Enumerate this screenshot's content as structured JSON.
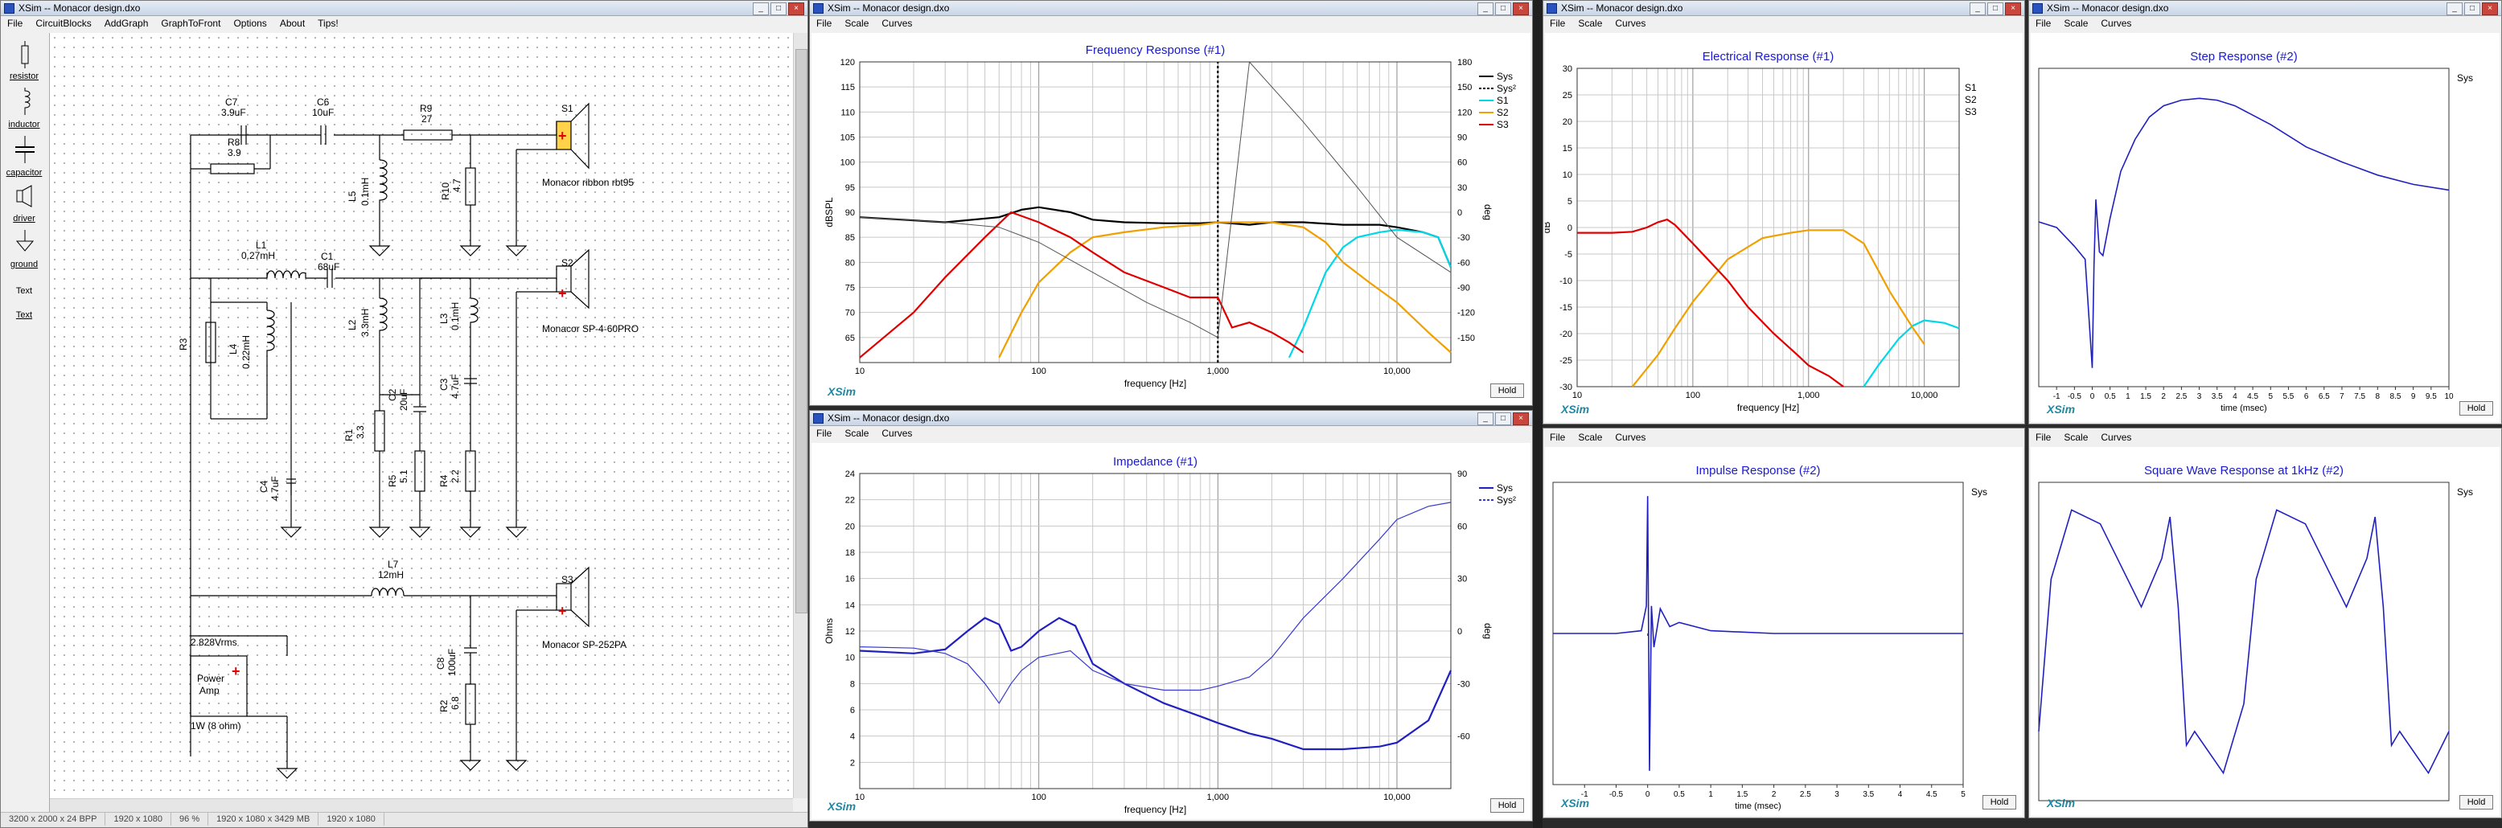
{
  "schematic": {
    "title": "XSim -- Monacor design.dxo",
    "menu": [
      "File",
      "CircuitBlocks",
      "AddGraph",
      "GraphToFront",
      "Options",
      "About",
      "Tips!"
    ],
    "tools": [
      {
        "label": "resistor",
        "icon": "resistor-icon"
      },
      {
        "label": "inductor",
        "icon": "inductor-icon"
      },
      {
        "label": "capacitor",
        "icon": "capacitor-icon"
      },
      {
        "label": "driver",
        "icon": "driver-icon"
      },
      {
        "label": "ground",
        "icon": "ground-icon"
      },
      {
        "label": "Text",
        "icon": ""
      },
      {
        "label": "Text",
        "icon": ""
      }
    ],
    "labels": {
      "C7": "C7",
      "C7v": "3.9uF",
      "R8": "R8",
      "R8v": "3.9",
      "C6": "C6",
      "C6v": "10uF",
      "R9": "R9",
      "R9v": "27",
      "L5": "L5",
      "L5v": "0.1mH",
      "R10": "R10",
      "R10v": "4.7",
      "S1": "S1",
      "S1name": "Monacor ribbon rbt95",
      "L1": "L1",
      "L1v": "0.27mH",
      "C1": "C1",
      "C1v": "68uF",
      "S2": "S2",
      "S2name": "Monacor SP-4-60PRO",
      "R3": "R3",
      "L4": "L4",
      "L4v": "0.22mH",
      "L2": "L2",
      "L2v": "3.3mH",
      "C2": "C2",
      "C2v": "20uF",
      "C3": "C3",
      "C3v": "4.7uF",
      "L3": "L3",
      "L3v": "0.1mH",
      "R1": "R1",
      "R1v": "3.3",
      "R5": "R5",
      "R5v": "5.1",
      "R4": "R4",
      "R4v": "2.2",
      "C4": "C4",
      "C4v": "4.7uF",
      "L7": "L7",
      "L7v": "12mH",
      "S3": "S3",
      "S3name": "Monacor SP-252PA",
      "C8": "C8",
      "C8v": "100uF",
      "R2": "R2",
      "R2v": "6.8",
      "amp_v": "2.828Vrms",
      "amp1": "Power",
      "amp2": "Amp",
      "amp_note": "1W (8 ohm)"
    },
    "status": [
      "3200 x 2000 x 24 BPP",
      "1920 x 1080",
      "96 %",
      "1920 x 1080 x 3429 MB",
      "1920 x 1080"
    ]
  },
  "freq": {
    "title": "XSim -- Monacor design.dxo",
    "menu": [
      "File",
      "Scale",
      "Curves"
    ],
    "chart_title": "Frequency Response (#1)",
    "xlabel": "frequency [Hz]",
    "ylabel": "dBSPL",
    "y2label": "deg",
    "legend": [
      "Sys",
      "Sys²",
      "S1",
      "S2",
      "S3"
    ],
    "hold": "Hold",
    "logo": "XSim"
  },
  "imp": {
    "title": "XSim -- Monacor design.dxo",
    "menu": [
      "File",
      "Scale",
      "Curves"
    ],
    "chart_title": "Impedance (#1)",
    "xlabel": "frequency [Hz]",
    "ylabel": "Ohms",
    "y2label": "deg",
    "legend": [
      "Sys",
      "Sys²"
    ],
    "hold": "Hold",
    "logo": "XSim"
  },
  "elec": {
    "title": "XSim -- Monacor design.dxo",
    "menu": [
      "File",
      "Scale",
      "Curves"
    ],
    "chart_title": "Electrical Response (#1)",
    "xlabel": "frequency [Hz]",
    "ylabel": "dB",
    "legend": [
      "S1",
      "S2",
      "S3"
    ],
    "logo": "XSim"
  },
  "step": {
    "title": "XSim -- Monacor design.dxo",
    "menu": [
      "File",
      "Scale",
      "Curves"
    ],
    "chart_title": "Step Response (#2)",
    "xlabel": "time (msec)",
    "legend": [
      "Sys"
    ],
    "hold": "Hold",
    "logo": "XSim"
  },
  "impulse": {
    "menu": [
      "File",
      "Scale",
      "Curves"
    ],
    "chart_title": "Impulse Response (#2)",
    "xlabel": "time (msec)",
    "legend": [
      "Sys"
    ],
    "hold": "Hold",
    "logo": "XSim"
  },
  "square": {
    "menu": [
      "File",
      "Scale",
      "Curves"
    ],
    "chart_title": "Square Wave Response at 1kHz (#2)",
    "legend": [
      "Sys"
    ],
    "hold": "Hold",
    "logo": "XSim"
  },
  "chart_data": [
    {
      "type": "line",
      "title": "Frequency Response (#1)",
      "xlabel": "frequency [Hz]",
      "ylabel": "dBSPL",
      "xscale": "log",
      "xlim": [
        10,
        20000
      ],
      "ylim": [
        60,
        120
      ],
      "y2lim": [
        -180,
        180
      ],
      "x_ticks": [
        "10",
        "100",
        "1,000",
        "10,000"
      ],
      "y_ticks": [
        65,
        70,
        75,
        80,
        85,
        90,
        95,
        100,
        105,
        110,
        115,
        120
      ],
      "y2_ticks": [
        180,
        150,
        120,
        90,
        60,
        30,
        0,
        -30,
        -60,
        -90,
        -120,
        -150
      ],
      "series": [
        {
          "name": "Sys",
          "color": "#000000",
          "x": [
            10,
            30,
            60,
            80,
            100,
            150,
            200,
            300,
            500,
            800,
            1000,
            1500,
            2000,
            3000,
            5000,
            8000,
            10000,
            14000,
            17000,
            20000
          ],
          "y": [
            89,
            88,
            89,
            90.5,
            91,
            90,
            88.5,
            88,
            87.8,
            87.8,
            88,
            87.5,
            88,
            88,
            87.5,
            87.5,
            87,
            86,
            85,
            79
          ]
        },
        {
          "name": "Sys²",
          "color": "#000000",
          "dash": true,
          "x": [
            1000,
            1000
          ],
          "y": [
            60,
            120
          ]
        },
        {
          "name": "S1",
          "color": "#00d8e8",
          "x": [
            2500,
            3000,
            4000,
            5000,
            6000,
            8000,
            10000,
            14000,
            17000,
            20000
          ],
          "y": [
            61,
            67,
            78,
            83,
            85,
            86,
            86.5,
            86,
            85,
            79
          ]
        },
        {
          "name": "S2",
          "color": "#f0a000",
          "x": [
            60,
            80,
            100,
            150,
            200,
            300,
            500,
            800,
            1000,
            1500,
            2000,
            3000,
            4000,
            5000,
            7000,
            10000,
            15000,
            20000
          ],
          "y": [
            61,
            70,
            76,
            82,
            85,
            86,
            87,
            87.5,
            88,
            88,
            88,
            87,
            84,
            80,
            76,
            72,
            66,
            62
          ]
        },
        {
          "name": "S3",
          "color": "#e00000",
          "x": [
            10,
            20,
            30,
            50,
            70,
            100,
            150,
            200,
            300,
            500,
            700,
            1000,
            1200,
            1500,
            2000,
            2500,
            3000
          ],
          "y": [
            61,
            70,
            77,
            85,
            90,
            88,
            85,
            82,
            78,
            75,
            73,
            73,
            67,
            68,
            66,
            64,
            62
          ]
        },
        {
          "name": "phase",
          "color": "#555555",
          "x": [
            10,
            30,
            60,
            100,
            200,
            400,
            700,
            1000,
            1500,
            3000,
            6000,
            10000,
            20000
          ],
          "y": [
            89,
            88,
            87,
            84,
            78,
            72,
            68,
            65,
            120,
            108,
            95,
            85,
            78
          ]
        }
      ]
    },
    {
      "type": "line",
      "title": "Impedance (#1)",
      "xlabel": "frequency [Hz]",
      "ylabel": "Ohms",
      "xscale": "log",
      "xlim": [
        10,
        20000
      ],
      "ylim": [
        0,
        24
      ],
      "y2lim": [
        -90,
        90
      ],
      "x_ticks": [
        "10",
        "100",
        "1,000",
        "10,000"
      ],
      "y_ticks": [
        2,
        4,
        6,
        8,
        10,
        12,
        14,
        16,
        18,
        20,
        22,
        24
      ],
      "y2_ticks": [
        90,
        60,
        30,
        0,
        -30,
        -60
      ],
      "series": [
        {
          "name": "Sys",
          "color": "#2020c0",
          "x": [
            10,
            20,
            30,
            40,
            50,
            60,
            70,
            80,
            100,
            130,
            160,
            200,
            300,
            500,
            800,
            1000,
            1500,
            2000,
            3000,
            5000,
            8000,
            10000,
            15000,
            20000
          ],
          "y": [
            10.5,
            10.3,
            10.6,
            12,
            13,
            12.5,
            10.5,
            10.8,
            12,
            13,
            12.4,
            9.5,
            8,
            6.5,
            5.5,
            5,
            4.2,
            3.8,
            3,
            3,
            3.2,
            3.5,
            5.2,
            9
          ]
        },
        {
          "name": "Sys²",
          "color": "#3a3ad0",
          "thin": true,
          "x": [
            10,
            20,
            30,
            40,
            50,
            60,
            70,
            80,
            100,
            150,
            200,
            300,
            500,
            800,
            1000,
            1500,
            2000,
            3000,
            5000,
            8000,
            10000,
            15000,
            20000
          ],
          "y": [
            10.8,
            10.7,
            10.3,
            9.5,
            8,
            6.5,
            8,
            9,
            10,
            10.5,
            9,
            8,
            7.5,
            7.5,
            7.8,
            8.5,
            10,
            13,
            16,
            19,
            20.5,
            21.5,
            21.8
          ]
        }
      ]
    },
    {
      "type": "line",
      "title": "Electrical Response (#1)",
      "xlabel": "frequency [Hz]",
      "ylabel": "dB",
      "xscale": "log",
      "xlim": [
        10,
        20000
      ],
      "ylim": [
        -30,
        30
      ],
      "x_ticks": [
        "10",
        "100",
        "1,000",
        "10,000"
      ],
      "y_ticks": [
        30,
        25,
        20,
        15,
        10,
        5,
        0,
        -5,
        -10,
        -15,
        -20,
        -25,
        -30
      ],
      "series": [
        {
          "name": "S1",
          "color": "#00d8e8",
          "x": [
            3000,
            4000,
            6000,
            8000,
            10000,
            15000,
            20000
          ],
          "y": [
            -30,
            -26,
            -21,
            -18.5,
            -17.5,
            -18,
            -19
          ]
        },
        {
          "name": "S2",
          "color": "#f0a000",
          "x": [
            30,
            50,
            70,
            100,
            200,
            400,
            700,
            1000,
            1500,
            2000,
            3000,
            5000,
            8000,
            10000
          ],
          "y": [
            -30,
            -24,
            -19,
            -14,
            -6,
            -2,
            -1,
            -0.5,
            -0.5,
            -0.5,
            -3,
            -12,
            -19,
            -22
          ]
        },
        {
          "name": "S3",
          "color": "#e00000",
          "x": [
            10,
            20,
            30,
            40,
            50,
            60,
            70,
            100,
            200,
            300,
            500,
            800,
            1000,
            1500,
            2000
          ],
          "y": [
            -1,
            -1,
            -0.8,
            0,
            1,
            1.5,
            0.5,
            -3,
            -10,
            -15,
            -20,
            -24,
            -26,
            -28,
            -30
          ]
        }
      ]
    },
    {
      "type": "line",
      "title": "Step Response (#2)",
      "xlabel": "time (msec)",
      "xlim": [
        -1.5,
        10
      ],
      "x_ticks": [
        "-1",
        "-0.5",
        "0",
        "0.5",
        "1",
        "1.5",
        "2",
        "2.5",
        "3",
        "3.5",
        "4",
        "4.5",
        "5",
        "5.5",
        "6",
        "6.5",
        "7",
        "7.5",
        "8",
        "8.5",
        "9",
        "9.5",
        "10"
      ],
      "series": [
        {
          "name": "Sys",
          "color": "#2020c0",
          "x": [
            -1.5,
            -1,
            -0.5,
            -0.2,
            0,
            0.05,
            0.1,
            0.2,
            0.3,
            0.5,
            0.8,
            1.2,
            1.6,
            2,
            2.5,
            3,
            3.5,
            4,
            5,
            6,
            7,
            8,
            9,
            10
          ],
          "y": [
            0.28,
            0.25,
            0.15,
            0.08,
            -0.5,
            0.05,
            0.4,
            0.12,
            0.1,
            0.3,
            0.55,
            0.72,
            0.84,
            0.9,
            0.93,
            0.94,
            0.93,
            0.9,
            0.8,
            0.68,
            0.6,
            0.53,
            0.48,
            0.45
          ]
        }
      ]
    },
    {
      "type": "line",
      "title": "Impulse Response (#2)",
      "xlabel": "time (msec)",
      "xlim": [
        -1.5,
        5
      ],
      "x_ticks": [
        "-1",
        "-0.5",
        "0",
        "0.5",
        "1",
        "1.5",
        "2",
        "2.5",
        "3",
        "3.5",
        "4",
        "4.5",
        "5"
      ],
      "series": [
        {
          "name": "Sys",
          "color": "#2020c0",
          "x": [
            -1.5,
            -0.5,
            -0.1,
            -0.02,
            0,
            0.03,
            0.06,
            0.1,
            0.2,
            0.35,
            0.5,
            1,
            2,
            3,
            4,
            5
          ],
          "y": [
            0,
            0,
            0.02,
            0.2,
            1,
            -1,
            0.2,
            -0.1,
            0.18,
            0.05,
            0.08,
            0.02,
            0,
            0,
            0,
            0
          ]
        }
      ]
    },
    {
      "type": "line",
      "title": "Square Wave Response at 1kHz (#2)",
      "series": [
        {
          "name": "Sys",
          "color": "#2020c0",
          "x": [
            0,
            0.03,
            0.08,
            0.15,
            0.2,
            0.25,
            0.3,
            0.32,
            0.34,
            0.36,
            0.38,
            0.45,
            0.5,
            0.53,
            0.58,
            0.65,
            0.7,
            0.75,
            0.8,
            0.82,
            0.84,
            0.86,
            0.88,
            0.95,
            1
          ],
          "y": [
            -0.6,
            0.5,
            1,
            0.9,
            0.6,
            0.3,
            0.65,
            0.95,
            0.3,
            -0.7,
            -0.6,
            -0.9,
            -0.4,
            0.5,
            1,
            0.9,
            0.6,
            0.3,
            0.65,
            0.95,
            0.3,
            -0.7,
            -0.6,
            -0.9,
            -0.6
          ]
        }
      ]
    }
  ]
}
